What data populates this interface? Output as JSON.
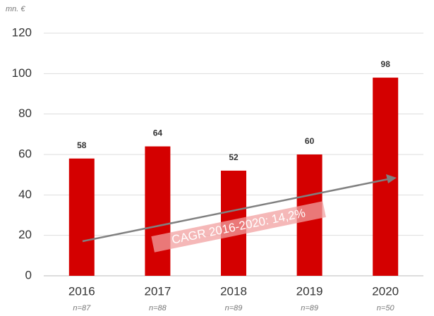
{
  "chart_data": {
    "type": "bar",
    "unit_label": "mn. €",
    "categories": [
      "2016",
      "2017",
      "2018",
      "2019",
      "2020"
    ],
    "sample_sizes": [
      "n=87",
      "n=88",
      "n=89",
      "n=89",
      "n=50"
    ],
    "values": [
      58,
      64,
      52,
      60,
      98
    ],
    "color": "#d40000",
    "ylim": [
      0,
      120
    ],
    "yticks": [
      0,
      20,
      40,
      60,
      80,
      100,
      120
    ],
    "grid": true,
    "annotation": "CAGR 2016-2020: 14,2%"
  }
}
